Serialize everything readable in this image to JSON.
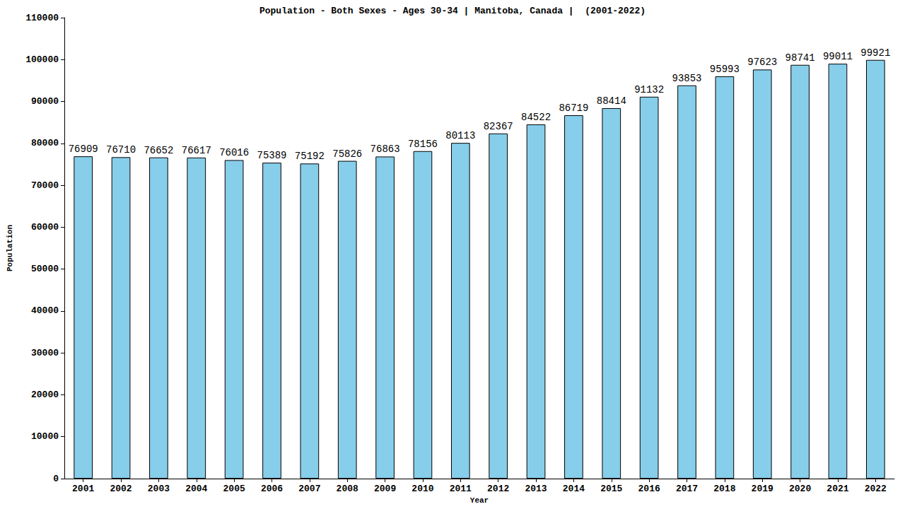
{
  "chart_data": {
    "type": "bar",
    "title": "Population - Both Sexes - Ages 30-34 | Manitoba, Canada |  (2001-2022)",
    "x_label": "Year",
    "y_label": "Population",
    "categories": [
      "2001",
      "2002",
      "2003",
      "2004",
      "2005",
      "2006",
      "2007",
      "2008",
      "2009",
      "2010",
      "2011",
      "2012",
      "2013",
      "2014",
      "2015",
      "2016",
      "2017",
      "2018",
      "2019",
      "2020",
      "2021",
      "2022"
    ],
    "values": [
      76909,
      76710,
      76652,
      76617,
      76016,
      75389,
      75192,
      75826,
      76863,
      78156,
      80113,
      82367,
      84522,
      86719,
      88414,
      91132,
      93853,
      95993,
      97623,
      98741,
      99011,
      99921
    ],
    "color": "#87ceeb",
    "ylim": [
      0,
      110000
    ],
    "yticks": [
      0,
      10000,
      20000,
      30000,
      40000,
      50000,
      60000,
      70000,
      80000,
      90000,
      100000,
      110000
    ],
    "grid": false,
    "data_labels": true
  }
}
